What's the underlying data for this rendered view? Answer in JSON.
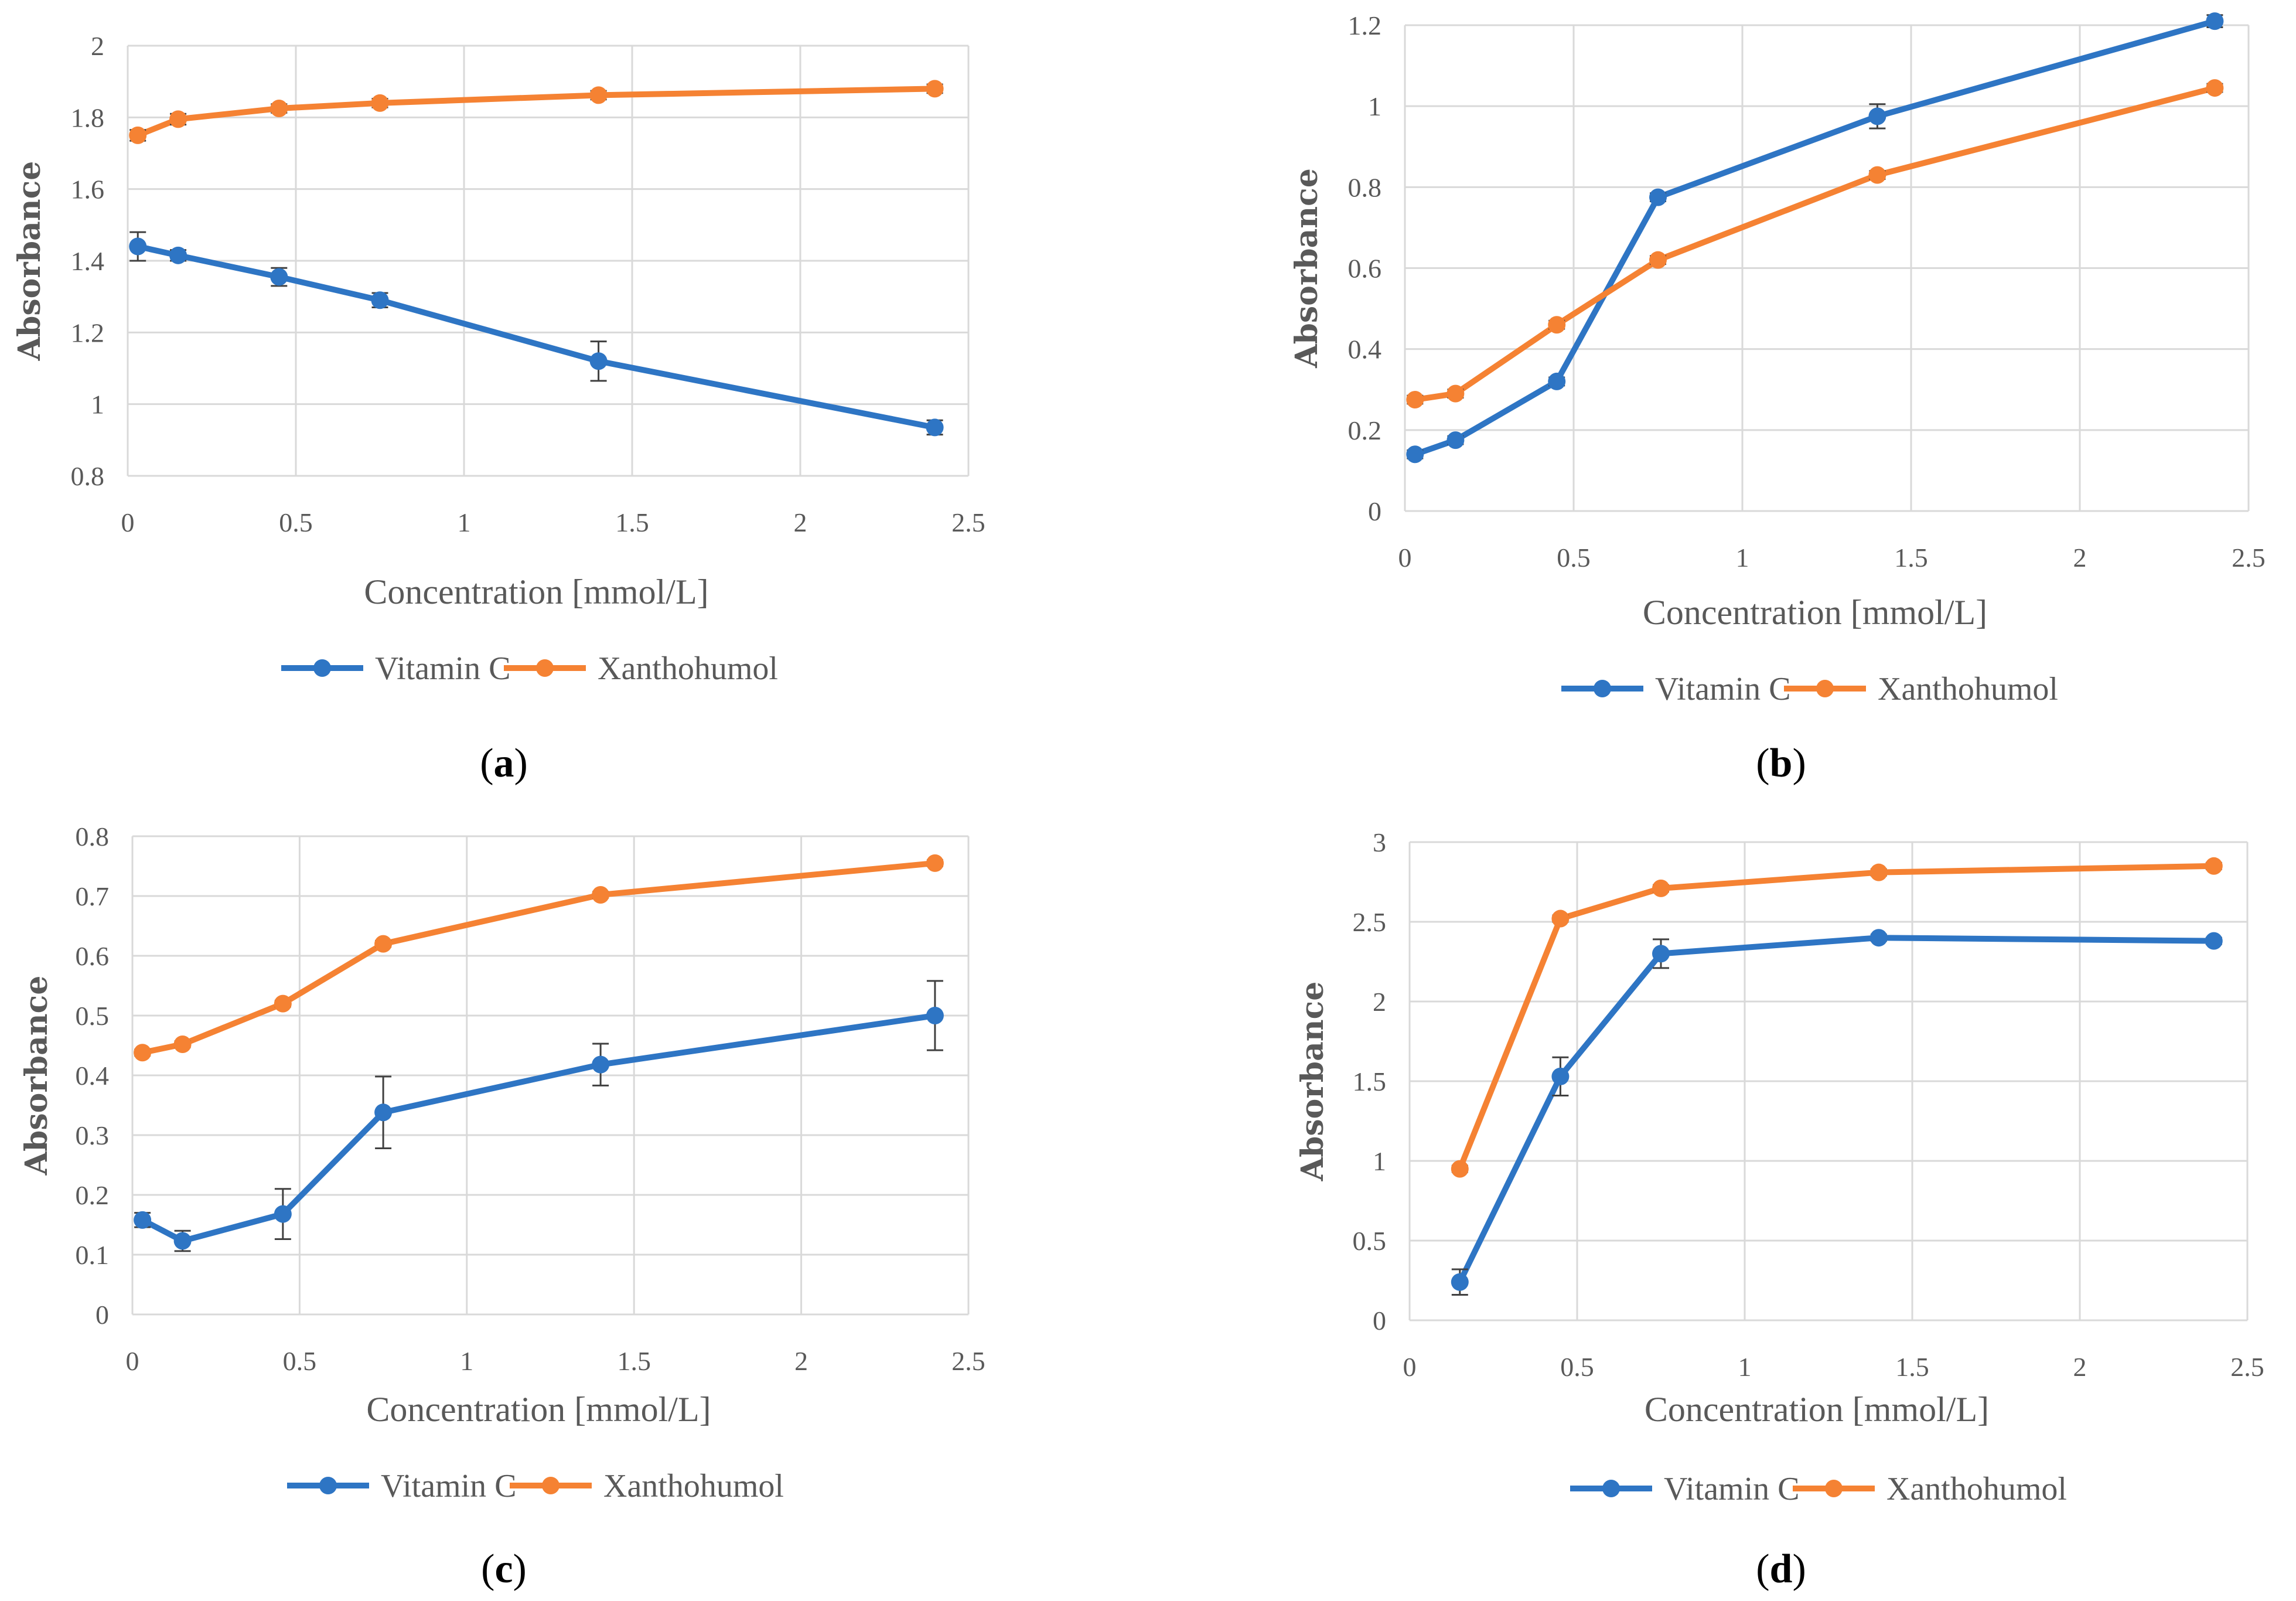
{
  "colors": {
    "vitamin_c": "#2E75C4",
    "xanthohumol": "#F58233",
    "grid": "#D9D9D9",
    "text": "#595959"
  },
  "chart_data": [
    {
      "type": "line",
      "panel": "a",
      "caption": "a",
      "xlabel": "Concentration [mmol/L]",
      "ylabel": "Absorbance",
      "xlim": [
        0,
        2.5
      ],
      "ylim": [
        0.8,
        2
      ],
      "xticks": [
        "0",
        "0.5",
        "1",
        "1.5",
        "2",
        "2.5"
      ],
      "yticks": [
        "0.8",
        "1",
        "1.2",
        "1.4",
        "1.6",
        "1.8",
        "2"
      ],
      "grid": "vertical and horizontal",
      "legend_position": "bottom",
      "series": [
        {
          "name": "Vitamin C",
          "x": [
            0.03,
            0.15,
            0.45,
            0.75,
            1.4,
            2.4
          ],
          "values": [
            1.44,
            1.415,
            1.355,
            1.29,
            1.12,
            0.935
          ],
          "errors": [
            0.04,
            0.015,
            0.025,
            0.02,
            0.055,
            0.02
          ]
        },
        {
          "name": "Xanthohumol",
          "x": [
            0.03,
            0.15,
            0.45,
            0.75,
            1.4,
            2.4
          ],
          "values": [
            1.75,
            1.795,
            1.825,
            1.84,
            1.862,
            1.88
          ],
          "errors": [
            0.015,
            0.015,
            0.012,
            0.012,
            0.012,
            0.012
          ]
        }
      ]
    },
    {
      "type": "line",
      "panel": "b",
      "caption": "b",
      "xlabel": "Concentration [mmol/L]",
      "ylabel": "Absorbance",
      "xlim": [
        0,
        2.5
      ],
      "ylim": [
        0,
        1.2
      ],
      "xticks": [
        "0",
        "0.5",
        "1",
        "1.5",
        "2",
        "2.5"
      ],
      "yticks": [
        "0",
        "0.2",
        "0.4",
        "0.6",
        "0.8",
        "1",
        "1.2"
      ],
      "grid": "vertical and horizontal",
      "legend_position": "bottom",
      "series": [
        {
          "name": "Vitamin C",
          "x": [
            0.03,
            0.15,
            0.45,
            0.75,
            1.4,
            2.4
          ],
          "values": [
            0.14,
            0.175,
            0.32,
            0.775,
            0.975,
            1.21
          ],
          "errors": [
            0.01,
            0.01,
            0.01,
            0.01,
            0.03,
            0.015
          ]
        },
        {
          "name": "Xanthohumol",
          "x": [
            0.03,
            0.15,
            0.45,
            0.75,
            1.4,
            2.4
          ],
          "values": [
            0.275,
            0.29,
            0.46,
            0.62,
            0.83,
            1.045
          ],
          "errors": [
            0.01,
            0.01,
            0.01,
            0.01,
            0.01,
            0.01
          ]
        }
      ]
    },
    {
      "type": "line",
      "panel": "c",
      "caption": "c",
      "xlabel": "Concentration [mmol/L]",
      "ylabel": "Absorbance",
      "xlim": [
        0,
        2.5
      ],
      "ylim": [
        0,
        0.8
      ],
      "xticks": [
        "0",
        "0.5",
        "1",
        "1.5",
        "2",
        "2.5"
      ],
      "yticks": [
        "0",
        "0.1",
        "0.2",
        "0.3",
        "0.4",
        "0.5",
        "0.6",
        "0.7",
        "0.8"
      ],
      "grid": "vertical and horizontal",
      "legend_position": "bottom",
      "series": [
        {
          "name": "Vitamin C",
          "x": [
            0.03,
            0.15,
            0.45,
            0.75,
            1.4,
            2.4
          ],
          "values": [
            0.158,
            0.123,
            0.168,
            0.338,
            0.418,
            0.5
          ],
          "errors": [
            0.012,
            0.017,
            0.042,
            0.06,
            0.035,
            0.058
          ]
        },
        {
          "name": "Xanthohumol",
          "x": [
            0.03,
            0.15,
            0.45,
            0.75,
            1.4,
            2.4
          ],
          "values": [
            0.438,
            0.452,
            0.52,
            0.62,
            0.702,
            0.755
          ],
          "errors": [
            0.005,
            0.005,
            0.005,
            0.005,
            0.005,
            0.005
          ]
        }
      ]
    },
    {
      "type": "line",
      "panel": "d",
      "caption": "d",
      "xlabel": "Concentration [mmol/L]",
      "ylabel": "Absorbance",
      "xlim": [
        0,
        2.5
      ],
      "ylim": [
        0,
        3
      ],
      "xticks": [
        "0",
        "0.5",
        "1",
        "1.5",
        "2",
        "2.5"
      ],
      "yticks": [
        "0",
        "0.5",
        "1",
        "1.5",
        "2",
        "2.5",
        "3"
      ],
      "grid": "vertical and horizontal",
      "legend_position": "bottom",
      "series": [
        {
          "name": "Vitamin C",
          "x": [
            0.15,
            0.45,
            0.75,
            1.4,
            2.4
          ],
          "values": [
            0.24,
            1.53,
            2.3,
            2.4,
            2.38
          ],
          "errors": [
            0.08,
            0.12,
            0.09,
            0.02,
            0.02
          ]
        },
        {
          "name": "Xanthohumol",
          "x": [
            0.15,
            0.45,
            0.75,
            1.4,
            2.4
          ],
          "values": [
            0.95,
            2.52,
            2.71,
            2.81,
            2.85
          ],
          "errors": [
            0.02,
            0.02,
            0.02,
            0.02,
            0.02
          ]
        }
      ]
    }
  ]
}
